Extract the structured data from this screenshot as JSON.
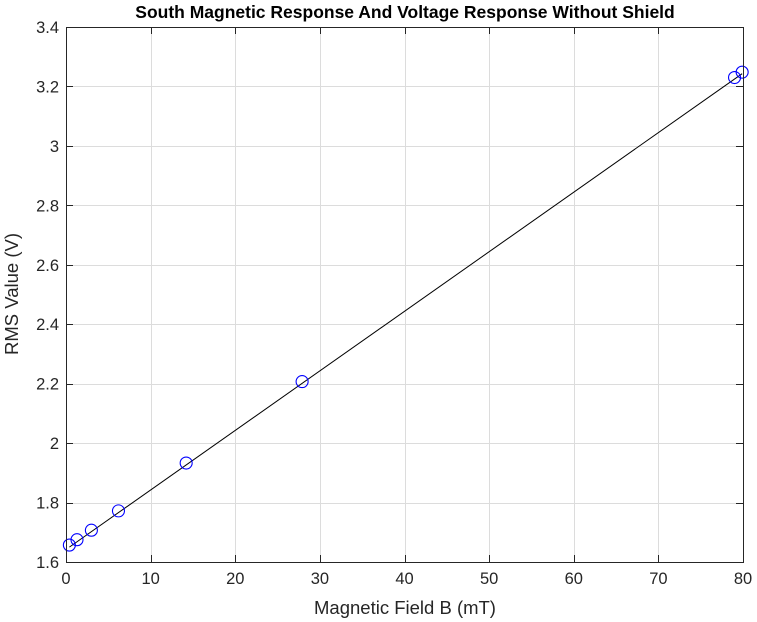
{
  "chart_data": {
    "type": "scatter",
    "title": "South Magnetic Response And Voltage Response Without Shield",
    "xlabel": "Magnetic Field B (mT)",
    "ylabel": "RMS Value (V)",
    "xlim": [
      0,
      80
    ],
    "ylim": [
      1.6,
      3.4
    ],
    "xticks": [
      0,
      10,
      20,
      30,
      40,
      50,
      60,
      70,
      80
    ],
    "yticks": [
      1.6,
      1.8,
      2,
      2.2,
      2.4,
      2.6,
      2.8,
      3,
      3.2,
      3.4
    ],
    "xtick_labels": [
      "0",
      "10",
      "20",
      "30",
      "40",
      "50",
      "60",
      "70",
      "80"
    ],
    "ytick_labels": [
      "1.6",
      "1.8",
      "2",
      "2.2",
      "2.4",
      "2.6",
      "2.8",
      "3",
      "3.2",
      "3.4"
    ],
    "grid": true,
    "series": [
      {
        "marker": "circle",
        "color": "#0000ff",
        "points": [
          {
            "x": 0.4,
            "y": 1.657
          },
          {
            "x": 1.3,
            "y": 1.675
          },
          {
            "x": 3.0,
            "y": 1.707
          },
          {
            "x": 6.2,
            "y": 1.772
          },
          {
            "x": 14.2,
            "y": 1.933
          },
          {
            "x": 27.9,
            "y": 2.207
          },
          {
            "x": 79.0,
            "y": 3.23
          },
          {
            "x": 79.9,
            "y": 3.248
          }
        ]
      }
    ],
    "fit_line": {
      "color": "#000000",
      "points": [
        {
          "x": 0.4,
          "y": 1.65
        },
        {
          "x": 79.9,
          "y": 3.243
        }
      ]
    }
  }
}
